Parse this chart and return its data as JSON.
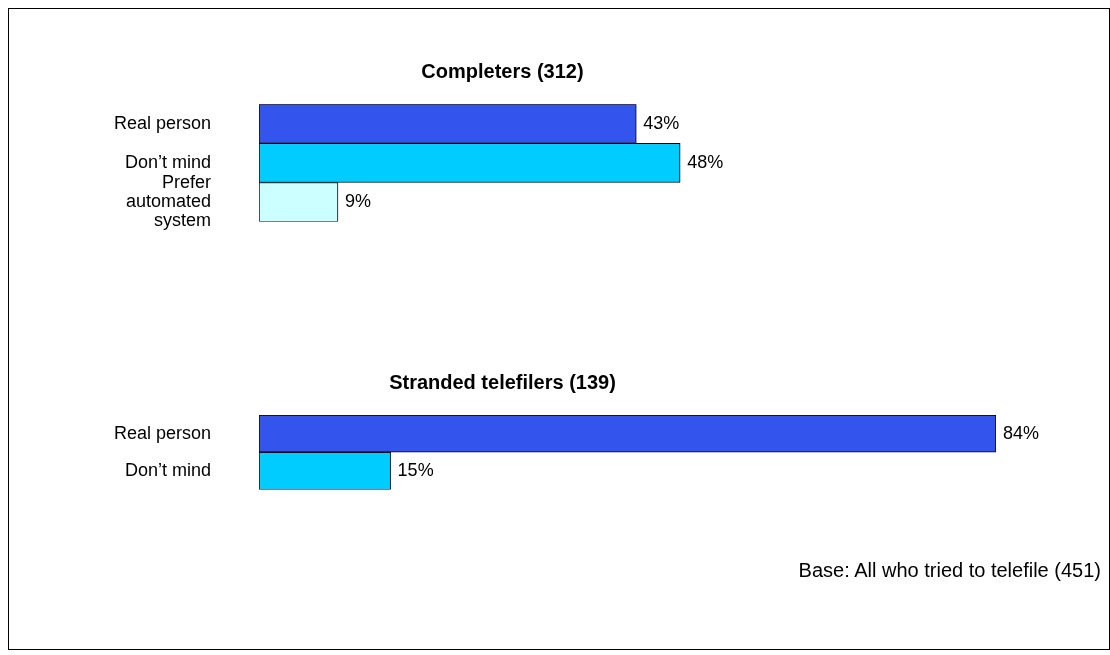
{
  "chart_data": [
    {
      "type": "bar",
      "orientation": "horizontal",
      "title": "Completers (312)",
      "categories": [
        "Real person",
        "Don’t mind",
        "Prefer automated system"
      ],
      "values": [
        43,
        48,
        9
      ],
      "colors": [
        "#3355ee",
        "#00ccff",
        "#ccffff"
      ],
      "value_labels": [
        "43%",
        "48%",
        "9%"
      ],
      "legend": false
    },
    {
      "type": "bar",
      "orientation": "horizontal",
      "title": "Stranded telefilers (139)",
      "categories": [
        "Real person",
        "Don’t mind"
      ],
      "values": [
        84,
        15
      ],
      "colors": [
        "#3355ee",
        "#00ccff"
      ],
      "value_labels": [
        "84%",
        "15%"
      ],
      "legend": false,
      "annotations": [
        "Base: All who tried to telefile (451)"
      ]
    }
  ]
}
